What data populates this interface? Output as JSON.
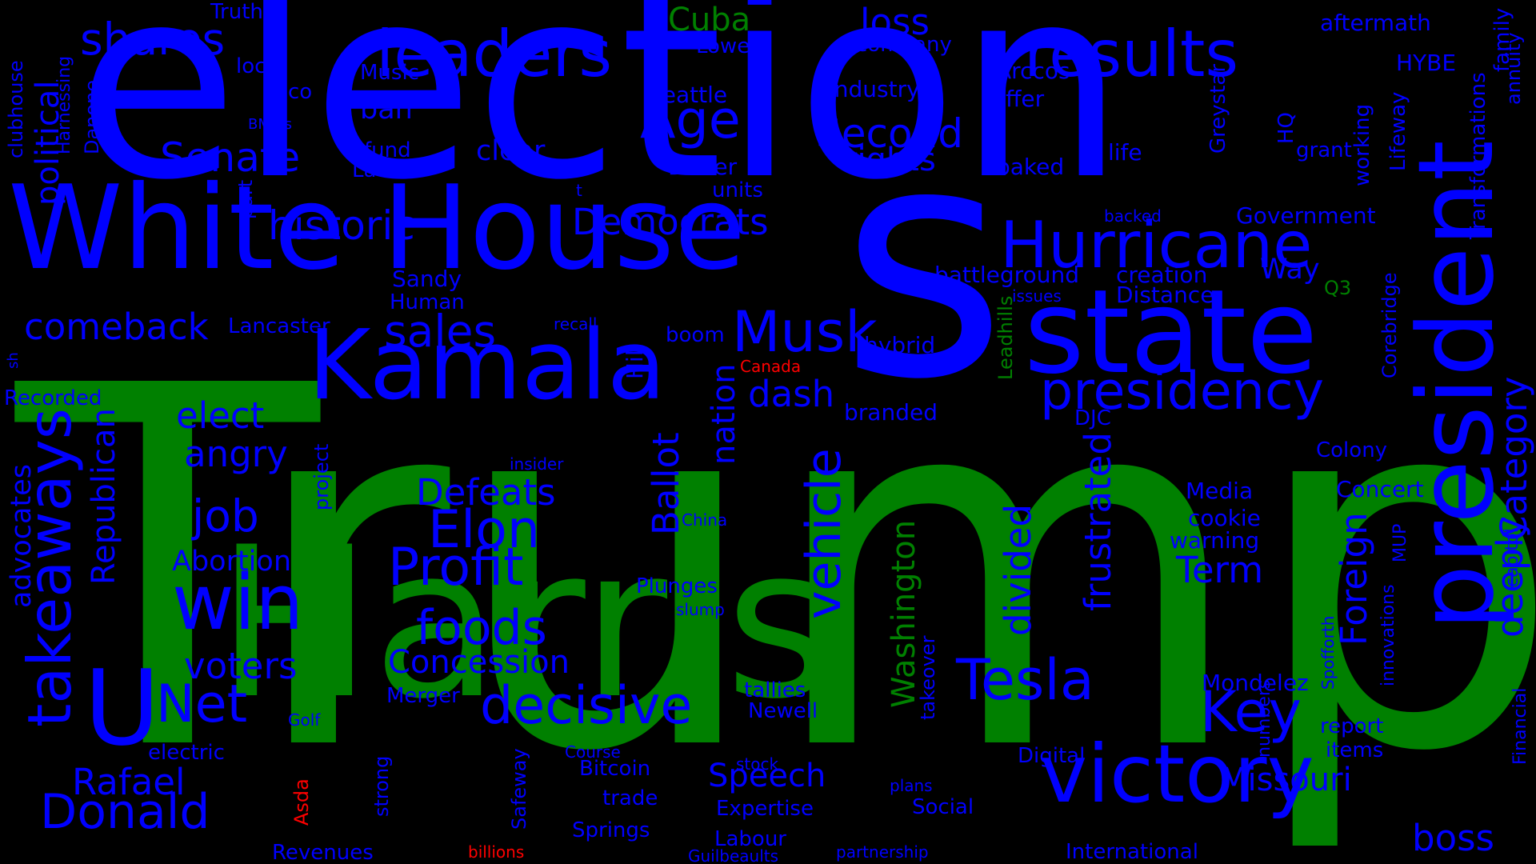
{
  "colors": {
    "background": "#000000",
    "blue": "#0000ff",
    "green": "#008000",
    "red": "#ff0000"
  },
  "words": [
    {
      "text": "Trump",
      "color": "green"
    },
    {
      "text": "election",
      "color": "blue"
    },
    {
      "text": "s",
      "color": "blue"
    },
    {
      "text": "Harris",
      "color": "green"
    },
    {
      "text": "White House",
      "color": "blue"
    },
    {
      "text": "president",
      "color": "blue"
    },
    {
      "text": "state",
      "color": "blue"
    },
    {
      "text": "Kamala",
      "color": "blue"
    },
    {
      "text": "U",
      "color": "blue"
    },
    {
      "text": "victory",
      "color": "blue"
    },
    {
      "text": "Hurricane",
      "color": "blue"
    },
    {
      "text": "results",
      "color": "blue"
    },
    {
      "text": "leaders",
      "color": "blue"
    },
    {
      "text": "takeaways",
      "color": "blue"
    },
    {
      "text": "win",
      "color": "blue"
    },
    {
      "text": "presidency",
      "color": "blue"
    },
    {
      "text": "Tesla",
      "color": "blue"
    },
    {
      "text": "Key",
      "color": "blue"
    },
    {
      "text": "decisive",
      "color": "blue"
    },
    {
      "text": "Musk",
      "color": "blue"
    },
    {
      "text": "Donald",
      "color": "blue"
    },
    {
      "text": "Net",
      "color": "blue"
    },
    {
      "text": "Elon",
      "color": "blue"
    },
    {
      "text": "Profit",
      "color": "blue"
    },
    {
      "text": "foods",
      "color": "blue"
    },
    {
      "text": "Age",
      "color": "blue"
    },
    {
      "text": "vehicle",
      "color": "blue"
    },
    {
      "text": "shares",
      "color": "blue"
    },
    {
      "text": "sales",
      "color": "blue"
    },
    {
      "text": "Second",
      "color": "blue"
    },
    {
      "text": "Senate",
      "color": "blue"
    },
    {
      "text": "comeback",
      "color": "blue"
    },
    {
      "text": "historic",
      "color": "blue"
    },
    {
      "text": "Democrats",
      "color": "blue"
    },
    {
      "text": "job",
      "color": "blue"
    },
    {
      "text": "Rafael",
      "color": "blue"
    },
    {
      "text": "boss",
      "color": "blue"
    },
    {
      "text": "Defeats",
      "color": "blue"
    },
    {
      "text": "angry",
      "color": "blue"
    },
    {
      "text": "elect",
      "color": "blue"
    },
    {
      "text": "voters",
      "color": "blue"
    },
    {
      "text": "Ballot",
      "color": "blue"
    },
    {
      "text": "Category",
      "color": "blue"
    },
    {
      "text": "deeply",
      "color": "blue"
    },
    {
      "text": "Foreign",
      "color": "blue"
    },
    {
      "text": "frustrated",
      "color": "blue"
    },
    {
      "text": "divided",
      "color": "blue"
    },
    {
      "text": "Term",
      "color": "blue"
    },
    {
      "text": "Washington",
      "color": "green"
    },
    {
      "text": "Republican",
      "color": "blue"
    },
    {
      "text": "political",
      "color": "blue"
    },
    {
      "text": "loss",
      "color": "blue"
    },
    {
      "text": "rights",
      "color": "blue"
    },
    {
      "text": "dash",
      "color": "blue"
    },
    {
      "text": "nation",
      "color": "blue"
    },
    {
      "text": "Speech",
      "color": "blue"
    },
    {
      "text": "Missouri",
      "color": "blue"
    },
    {
      "text": "Concession",
      "color": "blue"
    },
    {
      "text": "Abortion",
      "color": "blue"
    },
    {
      "text": "Cuba",
      "color": "green"
    },
    {
      "text": "advocates",
      "color": "blue"
    },
    {
      "text": "clear",
      "color": "blue"
    },
    {
      "text": "ban",
      "color": "blue"
    },
    {
      "text": "Way",
      "color": "blue"
    },
    {
      "text": "Seattle",
      "color": "blue"
    },
    {
      "text": "industry",
      "color": "blue"
    },
    {
      "text": "Arccos",
      "color": "blue"
    },
    {
      "text": "offer",
      "color": "blue"
    },
    {
      "text": "Music",
      "color": "blue"
    },
    {
      "text": "local",
      "color": "blue"
    },
    {
      "text": "co",
      "color": "blue"
    },
    {
      "text": "Truth",
      "color": "blue"
    },
    {
      "text": "Lower",
      "color": "blue"
    },
    {
      "text": "company",
      "color": "blue"
    },
    {
      "text": "aftermath",
      "color": "blue"
    },
    {
      "text": "HYBE",
      "color": "blue"
    },
    {
      "text": "family",
      "color": "blue"
    },
    {
      "text": "annuity",
      "color": "blue"
    },
    {
      "text": "Transformations",
      "color": "blue"
    },
    {
      "text": "Lifeway",
      "color": "blue"
    },
    {
      "text": "working",
      "color": "blue"
    },
    {
      "text": "Greystar",
      "color": "blue"
    },
    {
      "text": "HQ",
      "color": "blue"
    },
    {
      "text": "grant",
      "color": "blue"
    },
    {
      "text": "life",
      "color": "blue"
    },
    {
      "text": "baked",
      "color": "blue"
    },
    {
      "text": "Driver",
      "color": "blue"
    },
    {
      "text": "units",
      "color": "blue"
    },
    {
      "text": "fund",
      "color": "blue"
    },
    {
      "text": "Laws",
      "color": "blue"
    },
    {
      "text": "BMWs",
      "color": "blue"
    },
    {
      "text": "Danone",
      "color": "blue"
    },
    {
      "text": "Harnessing",
      "color": "blue"
    },
    {
      "text": "clubhouse",
      "color": "blue"
    },
    {
      "text": "part",
      "color": "blue"
    },
    {
      "text": "t",
      "color": "blue"
    },
    {
      "text": "backed",
      "color": "blue"
    },
    {
      "text": "Government",
      "color": "blue"
    },
    {
      "text": "battleground",
      "color": "blue"
    },
    {
      "text": "creation",
      "color": "blue"
    },
    {
      "text": "Distance",
      "color": "blue"
    },
    {
      "text": "issues",
      "color": "blue"
    },
    {
      "text": "Q3",
      "color": "green"
    },
    {
      "text": "Sandy",
      "color": "blue"
    },
    {
      "text": "Human",
      "color": "blue"
    },
    {
      "text": "Lancaster",
      "color": "blue"
    },
    {
      "text": "recall",
      "color": "blue"
    },
    {
      "text": "boom",
      "color": "blue"
    },
    {
      "text": "hybrid",
      "color": "blue"
    },
    {
      "text": "price",
      "color": "blue"
    },
    {
      "text": "Canada",
      "color": "red"
    },
    {
      "text": "Hill",
      "color": "blue"
    },
    {
      "text": "Leadhills",
      "color": "green"
    },
    {
      "text": "Corebridge",
      "color": "blue"
    },
    {
      "text": "sh",
      "color": "blue"
    },
    {
      "text": "Recorded",
      "color": "blue"
    },
    {
      "text": "branded",
      "color": "blue"
    },
    {
      "text": "DJC",
      "color": "blue"
    },
    {
      "text": "Colony",
      "color": "blue"
    },
    {
      "text": "insider",
      "color": "blue"
    },
    {
      "text": "project",
      "color": "blue"
    },
    {
      "text": "Media",
      "color": "blue"
    },
    {
      "text": "Concert",
      "color": "blue"
    },
    {
      "text": "cookie",
      "color": "blue"
    },
    {
      "text": "warning",
      "color": "blue"
    },
    {
      "text": "China",
      "color": "blue"
    },
    {
      "text": "MUP",
      "color": "blue"
    },
    {
      "text": "capitol",
      "color": "blue"
    },
    {
      "text": "Plunges",
      "color": "blue"
    },
    {
      "text": "slump",
      "color": "blue"
    },
    {
      "text": "Spofforth",
      "color": "blue"
    },
    {
      "text": "innovations",
      "color": "blue"
    },
    {
      "text": "Merger",
      "color": "blue"
    },
    {
      "text": "Golf",
      "color": "blue"
    },
    {
      "text": "electric",
      "color": "blue"
    },
    {
      "text": "tallies",
      "color": "blue"
    },
    {
      "text": "Newell",
      "color": "blue"
    },
    {
      "text": "takeover",
      "color": "blue"
    },
    {
      "text": "numbers",
      "color": "blue"
    },
    {
      "text": "Mondelez",
      "color": "blue"
    },
    {
      "text": "report",
      "color": "blue"
    },
    {
      "text": "items",
      "color": "blue"
    },
    {
      "text": "Financial",
      "color": "blue"
    },
    {
      "text": "Digital",
      "color": "blue"
    },
    {
      "text": "Course",
      "color": "blue"
    },
    {
      "text": "stock",
      "color": "blue"
    },
    {
      "text": "Bitcoin",
      "color": "blue"
    },
    {
      "text": "trade",
      "color": "blue"
    },
    {
      "text": "Expertise",
      "color": "blue"
    },
    {
      "text": "plans",
      "color": "blue"
    },
    {
      "text": "Social",
      "color": "blue"
    },
    {
      "text": "Asda",
      "color": "red"
    },
    {
      "text": "strong",
      "color": "blue"
    },
    {
      "text": "Safeway",
      "color": "blue"
    },
    {
      "text": "Springs",
      "color": "blue"
    },
    {
      "text": "Labour",
      "color": "blue"
    },
    {
      "text": "Revenues",
      "color": "blue"
    },
    {
      "text": "billions",
      "color": "red"
    },
    {
      "text": "Guilbeaults",
      "color": "blue"
    },
    {
      "text": "partnership",
      "color": "blue"
    },
    {
      "text": "International",
      "color": "blue"
    }
  ]
}
